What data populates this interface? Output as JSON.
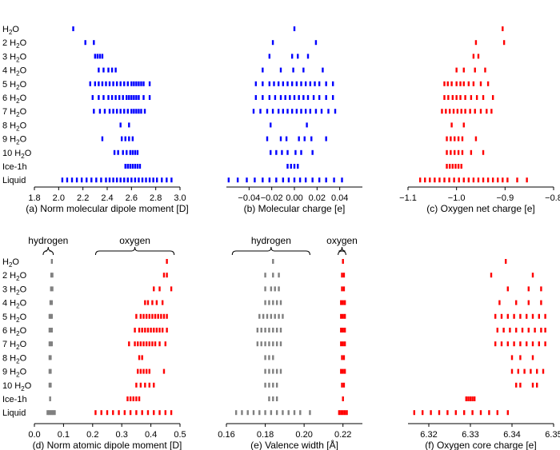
{
  "row_labels": [
    {
      "pre": "H",
      "sub": "2",
      "post": "O"
    },
    {
      "pre": "2 H",
      "sub": "2",
      "post": "O"
    },
    {
      "pre": "3 H",
      "sub": "2",
      "post": "O"
    },
    {
      "pre": "4 H",
      "sub": "2",
      "post": "O"
    },
    {
      "pre": "5 H",
      "sub": "2",
      "post": "O"
    },
    {
      "pre": "6 H",
      "sub": "2",
      "post": "O"
    },
    {
      "pre": "7 H",
      "sub": "2",
      "post": "O"
    },
    {
      "pre": "8 H",
      "sub": "2",
      "post": "O"
    },
    {
      "pre": "9 H",
      "sub": "2",
      "post": "O"
    },
    {
      "pre": "10 H",
      "sub": "2",
      "post": "O"
    },
    {
      "pre": "Ice-1h",
      "sub": "",
      "post": ""
    },
    {
      "pre": "Liquid",
      "sub": "",
      "post": ""
    }
  ],
  "colors": {
    "blue": "#0000ff",
    "red": "#ff0000",
    "gray": "#808080",
    "axis": "#000000"
  },
  "chart_data": [
    {
      "id": "a",
      "type": "scatter",
      "caption": "(a) Norm molecular dipole moment [D]",
      "xlim": [
        1.8,
        3.0
      ],
      "ticks": [
        "1.8",
        "2.0",
        "2.2",
        "2.4",
        "2.6",
        "2.8",
        "3.0"
      ],
      "series": [
        {
          "color": "blue",
          "rows": [
            [
              2.12
            ],
            [
              2.22,
              2.29
            ],
            [
              2.3,
              2.32,
              2.34,
              2.36
            ],
            [
              2.33,
              2.37,
              2.41,
              2.44,
              2.47
            ],
            [
              2.26,
              2.3,
              2.33,
              2.36,
              2.39,
              2.42,
              2.45,
              2.48,
              2.51,
              2.54,
              2.57,
              2.6,
              2.62,
              2.64,
              2.66,
              2.68,
              2.7,
              2.75
            ],
            [
              2.28,
              2.33,
              2.37,
              2.41,
              2.44,
              2.47,
              2.5,
              2.53,
              2.56,
              2.58,
              2.6,
              2.62,
              2.64,
              2.66,
              2.7,
              2.75
            ],
            [
              2.29,
              2.34,
              2.38,
              2.42,
              2.45,
              2.48,
              2.51,
              2.54,
              2.57,
              2.6,
              2.62,
              2.64,
              2.66,
              2.68,
              2.71
            ],
            [
              2.51,
              2.58
            ],
            [
              2.36,
              2.52,
              2.55,
              2.58,
              2.61
            ],
            [
              2.46,
              2.49,
              2.53,
              2.56,
              2.59,
              2.61,
              2.63,
              2.65
            ],
            [
              2.55,
              2.57,
              2.59,
              2.61,
              2.63,
              2.65,
              2.67
            ],
            [
              2.03,
              2.07,
              2.11,
              2.15,
              2.19,
              2.23,
              2.27,
              2.31,
              2.35,
              2.39,
              2.42,
              2.45,
              2.48,
              2.51,
              2.54,
              2.57,
              2.6,
              2.63,
              2.66,
              2.69,
              2.72,
              2.75,
              2.78,
              2.81,
              2.85,
              2.89,
              2.93
            ]
          ]
        }
      ]
    },
    {
      "id": "b",
      "type": "scatter",
      "caption": "(b) Molecular charge [e]",
      "xlim": [
        -0.06,
        0.06
      ],
      "ticks": [
        "−0.04",
        "−0.02",
        "0.00",
        "0.02",
        "0.04"
      ],
      "tick_values": [
        -0.04,
        -0.02,
        0.0,
        0.02,
        0.04
      ],
      "series": [
        {
          "color": "blue",
          "rows": [
            [
              0.0
            ],
            [
              -0.019,
              0.019
            ],
            [
              -0.022,
              -0.002,
              0.003,
              0.012
            ],
            [
              -0.028,
              -0.012,
              -0.001,
              0.008,
              0.025
            ],
            [
              -0.034,
              -0.028,
              -0.022,
              -0.018,
              -0.014,
              -0.01,
              -0.006,
              -0.002,
              0.002,
              0.006,
              0.01,
              0.014,
              0.018,
              0.022,
              0.028,
              0.034
            ],
            [
              -0.034,
              -0.028,
              -0.022,
              -0.017,
              -0.012,
              -0.008,
              -0.004,
              0.0,
              0.004,
              0.008,
              0.012,
              0.017,
              0.022,
              0.028,
              0.034
            ],
            [
              -0.036,
              -0.03,
              -0.024,
              -0.019,
              -0.014,
              -0.01,
              -0.006,
              -0.002,
              0.002,
              0.006,
              0.01,
              0.014,
              0.019,
              0.024,
              0.03,
              0.036
            ],
            [
              -0.021,
              0.011
            ],
            [
              -0.024,
              -0.012,
              -0.007,
              0.004,
              0.009,
              0.015,
              0.028
            ],
            [
              -0.021,
              -0.016,
              -0.011,
              -0.006,
              0.001,
              0.006,
              0.016
            ],
            [
              -0.006,
              -0.003,
              0.0,
              0.003
            ],
            [
              -0.058,
              -0.05,
              -0.042,
              -0.035,
              -0.028,
              -0.022,
              -0.016,
              -0.01,
              -0.005,
              0.0,
              0.005,
              0.01,
              0.016,
              0.022,
              0.028,
              0.035,
              0.042
            ]
          ]
        }
      ]
    },
    {
      "id": "c",
      "type": "scatter",
      "caption": "(c) Oxygen net charge [e]",
      "xlim": [
        -1.1,
        -0.8
      ],
      "ticks": [
        "−1.1",
        "−1.0",
        "−0.9",
        "−0.8"
      ],
      "tick_values": [
        -1.1,
        -1.0,
        -0.9,
        -0.8
      ],
      "series": [
        {
          "color": "red",
          "rows": [
            [
              -0.905
            ],
            [
              -0.96,
              -0.902
            ],
            [
              -0.965,
              -0.955
            ],
            [
              -1.0,
              -0.985,
              -0.962,
              -0.941
            ],
            [
              -1.025,
              -1.018,
              -1.01,
              -1.0,
              -0.992,
              -0.985,
              -0.975,
              -0.965,
              -0.95,
              -0.935
            ],
            [
              -1.025,
              -1.017,
              -1.008,
              -1.0,
              -0.992,
              -0.982,
              -0.97,
              -0.958,
              -0.945,
              -0.925
            ],
            [
              -1.03,
              -1.022,
              -1.014,
              -1.006,
              -0.998,
              -0.99,
              -0.982,
              -0.972,
              -0.962,
              -0.95,
              -0.938,
              -0.928
            ],
            [
              -1.01,
              -0.985
            ],
            [
              -1.02,
              -1.012,
              -1.004,
              -0.996,
              -0.988,
              -0.96
            ],
            [
              -1.02,
              -1.012,
              -1.004,
              -0.996,
              -0.988,
              -0.97,
              -0.945
            ],
            [
              -1.02,
              -1.014,
              -1.008,
              -1.002,
              -0.996,
              -0.99
            ],
            [
              -1.075,
              -1.065,
              -1.055,
              -1.045,
              -1.035,
              -1.025,
              -1.015,
              -1.005,
              -0.995,
              -0.985,
              -0.975,
              -0.965,
              -0.955,
              -0.945,
              -0.935,
              -0.925,
              -0.915,
              -0.905,
              -0.895,
              -0.875,
              -0.855
            ]
          ]
        }
      ]
    },
    {
      "id": "d",
      "type": "scatter",
      "caption": "(d) Norm atomic dipole moment [D]",
      "xlim": [
        0.0,
        0.5
      ],
      "ticks": [
        "0.0",
        "0.1",
        "0.2",
        "0.3",
        "0.4",
        "0.5"
      ],
      "annotations": [
        {
          "text": "hydrogen",
          "from": 0.03,
          "to": 0.065
        },
        {
          "text": "oxygen",
          "from": 0.21,
          "to": 0.48
        }
      ],
      "series": [
        {
          "color": "gray",
          "rows": [
            [
              0.06
            ],
            [
              0.058,
              0.062
            ],
            [
              0.057,
              0.062
            ],
            [
              0.055,
              0.06
            ],
            [
              0.052,
              0.056,
              0.06
            ],
            [
              0.052,
              0.056,
              0.06
            ],
            [
              0.052,
              0.056,
              0.06
            ],
            [
              0.052,
              0.056
            ],
            [
              0.052,
              0.056
            ],
            [
              0.052,
              0.056
            ],
            [
              0.054
            ],
            [
              0.045,
              0.05,
              0.055,
              0.06,
              0.065,
              0.07
            ]
          ]
        },
        {
          "color": "red",
          "rows": [
            [
              0.455
            ],
            [
              0.445,
              0.455
            ],
            [
              0.41,
              0.43,
              0.47
            ],
            [
              0.38,
              0.39,
              0.405,
              0.42,
              0.44
            ],
            [
              0.35,
              0.365,
              0.375,
              0.385,
              0.395,
              0.405,
              0.415,
              0.425,
              0.435,
              0.445,
              0.455
            ],
            [
              0.345,
              0.36,
              0.37,
              0.38,
              0.39,
              0.4,
              0.41,
              0.42,
              0.43,
              0.44,
              0.455
            ],
            [
              0.325,
              0.345,
              0.355,
              0.365,
              0.375,
              0.385,
              0.395,
              0.405,
              0.415,
              0.43,
              0.45
            ],
            [
              0.36,
              0.37
            ],
            [
              0.355,
              0.365,
              0.375,
              0.385,
              0.395,
              0.445
            ],
            [
              0.35,
              0.365,
              0.38,
              0.395,
              0.41
            ],
            [
              0.32,
              0.33,
              0.34,
              0.35,
              0.36
            ],
            [
              0.21,
              0.23,
              0.25,
              0.27,
              0.29,
              0.31,
              0.33,
              0.35,
              0.37,
              0.39,
              0.41,
              0.43,
              0.45,
              0.47
            ]
          ]
        }
      ]
    },
    {
      "id": "e",
      "type": "scatter",
      "caption": "(e) Valence width [Å]",
      "xlim": [
        0.16,
        0.23
      ],
      "ticks": [
        "0.16",
        "0.18",
        "0.20",
        "0.22"
      ],
      "tick_values": [
        0.16,
        0.18,
        0.2,
        0.22
      ],
      "annotations": [
        {
          "text": "hydrogen",
          "from": 0.163,
          "to": 0.203
        },
        {
          "text": "oxygen",
          "from": 0.2175,
          "to": 0.2215
        }
      ],
      "series": [
        {
          "color": "gray",
          "rows": [
            [
              0.184
            ],
            [
              0.18,
              0.184,
              0.187
            ],
            [
              0.18,
              0.183,
              0.185,
              0.187
            ],
            [
              0.18,
              0.182,
              0.184,
              0.186,
              0.188
            ],
            [
              0.177,
              0.179,
              0.181,
              0.183,
              0.185,
              0.187,
              0.189
            ],
            [
              0.176,
              0.178,
              0.18,
              0.182,
              0.184,
              0.186,
              0.188
            ],
            [
              0.176,
              0.178,
              0.18,
              0.182,
              0.184,
              0.186,
              0.188
            ],
            [
              0.18,
              0.182,
              0.184
            ],
            [
              0.18,
              0.182,
              0.184,
              0.186,
              0.188
            ],
            [
              0.18,
              0.182,
              0.184,
              0.186
            ],
            [
              0.182,
              0.184,
              0.186
            ],
            [
              0.165,
              0.168,
              0.171,
              0.174,
              0.177,
              0.18,
              0.183,
              0.186,
              0.189,
              0.192,
              0.195,
              0.198,
              0.203
            ]
          ]
        },
        {
          "color": "red",
          "rows": [
            [
              0.22
            ],
            [
              0.2195,
              0.2205
            ],
            [
              0.2195,
              0.2205
            ],
            [
              0.219,
              0.22,
              0.221
            ],
            [
              0.219,
              0.22,
              0.221
            ],
            [
              0.219,
              0.22,
              0.221
            ],
            [
              0.219,
              0.22,
              0.221
            ],
            [
              0.2195,
              0.2205
            ],
            [
              0.219,
              0.22,
              0.221
            ],
            [
              0.2195,
              0.2205
            ],
            [
              0.22
            ],
            [
              0.218,
              0.219,
              0.22,
              0.221,
              0.222
            ]
          ]
        }
      ]
    },
    {
      "id": "f",
      "type": "scatter",
      "caption": "(f) Oxygen core charge [e]",
      "xlim": [
        6.315,
        6.35
      ],
      "ticks": [
        "6.32",
        "6.33",
        "6.34",
        "6.35"
      ],
      "tick_values": [
        6.32,
        6.33,
        6.34,
        6.35
      ],
      "series": [
        {
          "color": "red",
          "rows": [
            [
              6.3385
            ],
            [
              6.335,
              6.345
            ],
            [
              6.339,
              6.344,
              6.347
            ],
            [
              6.337,
              6.341,
              6.344,
              6.347
            ],
            [
              6.336,
              6.3375,
              6.339,
              6.3405,
              6.342,
              6.3435,
              6.345,
              6.3465,
              6.348
            ],
            [
              6.3365,
              6.338,
              6.3395,
              6.341,
              6.3425,
              6.344,
              6.3455,
              6.347,
              6.348
            ],
            [
              6.336,
              6.3375,
              6.339,
              6.3405,
              6.342,
              6.3435,
              6.345,
              6.3465,
              6.348
            ],
            [
              6.34,
              6.342,
              6.345
            ],
            [
              6.34,
              6.3415,
              6.343,
              6.3445,
              6.346,
              6.3475
            ],
            [
              6.341,
              6.342,
              6.345,
              6.346
            ],
            [
              6.329,
              6.3295,
              6.33,
              6.3305,
              6.331
            ],
            [
              6.3165,
              6.3185,
              6.3205,
              6.3225,
              6.3245,
              6.3265,
              6.3285,
              6.3305,
              6.3325,
              6.3345,
              6.3365,
              6.339
            ]
          ]
        }
      ]
    }
  ]
}
